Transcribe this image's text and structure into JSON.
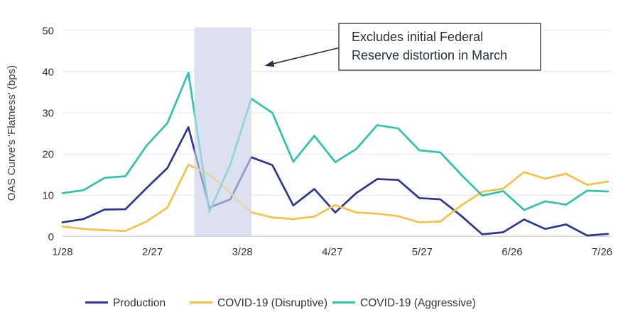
{
  "chart_data": {
    "type": "line",
    "ylabel": "OAS Curve's 'Flatness' (bps)",
    "ylim": [
      0,
      50
    ],
    "y_ticks": [
      0,
      10,
      20,
      30,
      40,
      50
    ],
    "grid": true,
    "x_tick_labels": [
      "1/28",
      "2/27",
      "3/28",
      "4/27",
      "5/27",
      "6/26",
      "7/26"
    ],
    "x_tick_days": [
      0,
      30,
      60,
      90,
      120,
      150,
      180
    ],
    "x_total_days": 182,
    "point_interval_days": 7,
    "dates": [
      "1/28",
      "2/4",
      "2/11",
      "2/18",
      "2/25",
      "3/3",
      "3/10",
      "3/17",
      "3/24",
      "3/31",
      "4/7",
      "4/14",
      "4/21",
      "4/28",
      "5/5",
      "5/12",
      "5/19",
      "5/26",
      "6/2",
      "6/9",
      "6/16",
      "6/23",
      "6/30",
      "7/7",
      "7/14",
      "7/21",
      "7/28"
    ],
    "series": [
      {
        "name": "Production",
        "color": "#2d3596",
        "values": [
          3.4,
          4.2,
          6.5,
          6.6,
          11.7,
          16.6,
          26.5,
          7.0,
          9.0,
          19.2,
          17.3,
          7.5,
          11.5,
          5.8,
          10.5,
          13.9,
          13.7,
          9.3,
          9.0,
          5.0,
          0.5,
          1.0,
          4.1,
          1.8,
          2.9,
          0.2,
          0.6
        ]
      },
      {
        "name": "COVID-19 (Disruptive)",
        "color": "#f6c245",
        "values": [
          2.4,
          1.8,
          1.5,
          1.3,
          3.6,
          7.0,
          17.4,
          15.0,
          10.6,
          5.8,
          4.6,
          4.2,
          4.8,
          7.6,
          5.8,
          5.5,
          4.9,
          3.4,
          3.6,
          7.5,
          10.8,
          11.6,
          15.6,
          14.0,
          15.2,
          12.5,
          13.3
        ]
      },
      {
        "name": "COVID-19 (Aggressive)",
        "color": "#2dc4ac",
        "values": [
          10.5,
          11.2,
          14.2,
          14.6,
          22.0,
          27.5,
          39.7,
          5.9,
          17.5,
          33.4,
          30.0,
          18.1,
          24.4,
          18.0,
          21.2,
          27.0,
          26.2,
          20.9,
          20.4,
          15.0,
          9.9,
          11.0,
          6.4,
          8.5,
          7.7,
          11.1,
          10.9
        ]
      }
    ],
    "shaded_region": {
      "start_day": 44,
      "end_day": 63,
      "color": "#dce0f0",
      "fade_opacity": 0.58
    },
    "annotation": {
      "line1": "Excludes initial Federal",
      "line2": "Reserve distortion in March"
    },
    "legend_position": "bottom",
    "colors": {
      "gridline": "#e4e4e4",
      "axis_line": "#d4d4d4",
      "annotation_border": "#3f4a54",
      "annotation_text": "#28323d",
      "arrow": "#25313b"
    }
  }
}
